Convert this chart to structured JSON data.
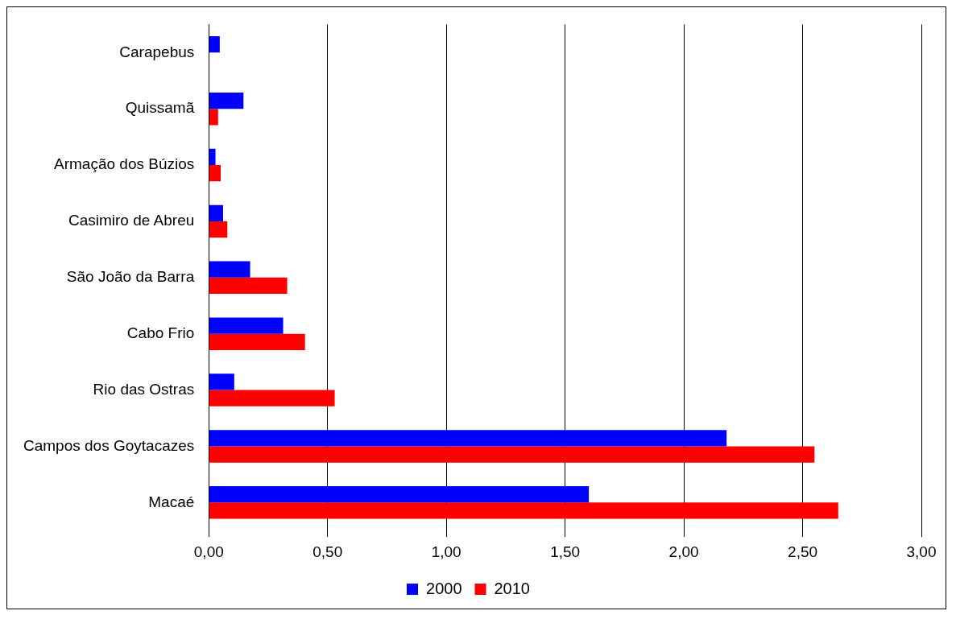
{
  "chart_data": {
    "type": "bar",
    "orientation": "horizontal",
    "categories": [
      "Carapebus",
      "Quissamã",
      "Armação dos Búzios",
      "Casimiro de Abreu",
      "São João da Barra",
      "Cabo Frio",
      "Rio das Ostras",
      "Campos dos Goytacazes",
      "Macaé"
    ],
    "series": [
      {
        "name": "2000",
        "color": "#0000ff",
        "values": [
          0.046,
          0.146,
          0.028,
          0.06,
          0.174,
          0.313,
          0.107,
          2.18,
          1.6
        ]
      },
      {
        "name": "2010",
        "color": "#ff0000",
        "values": [
          null,
          0.039,
          0.05,
          0.078,
          0.33,
          0.405,
          0.53,
          2.55,
          2.65
        ]
      }
    ],
    "xlim": [
      0,
      3
    ],
    "xticks": [
      {
        "value": 0,
        "label": "0,00"
      },
      {
        "value": 0.5,
        "label": "0,50"
      },
      {
        "value": 1,
        "label": "1,00"
      },
      {
        "value": 1.5,
        "label": "1,50"
      },
      {
        "value": 2,
        "label": "2,00"
      },
      {
        "value": 2.5,
        "label": "2,50"
      },
      {
        "value": 3,
        "label": "3,00"
      }
    ],
    "grid": "x",
    "legend": "bottom"
  }
}
